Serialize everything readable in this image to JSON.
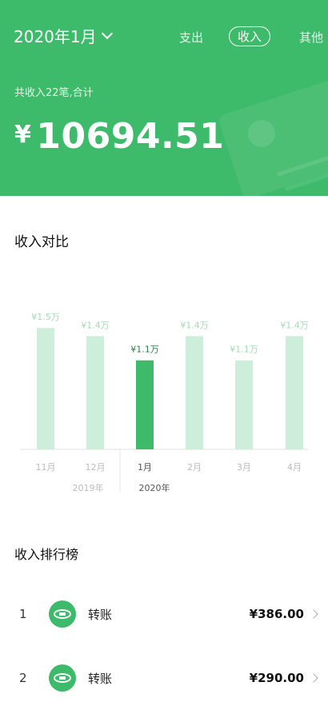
{
  "header": {
    "month": "2020年1月",
    "tabs": {
      "expense": "支出",
      "income": "收入",
      "other": "其他"
    },
    "summary_label": "共收入22笔,合计",
    "currency": "¥",
    "total": "10694.51",
    "colors": {
      "bg": "#3dba6a"
    }
  },
  "comparison": {
    "title": "收入对比",
    "chart_data": {
      "type": "bar",
      "categories": [
        "11月",
        "12月",
        "1月",
        "2月",
        "3月",
        "4月"
      ],
      "values": [
        1.5,
        1.4,
        1.1,
        1.4,
        1.1,
        1.4
      ],
      "labels": [
        "¥1.5万",
        "¥1.4万",
        "¥1.1万",
        "¥1.4万",
        "¥1.1万",
        "¥1.4万"
      ],
      "ylim": [
        0,
        1.7
      ],
      "highlight_index": 2,
      "year_labels": [
        "2019年",
        "2020年"
      ],
      "colors": {
        "bar": "#cdeeda",
        "highlight": "#3dba6a",
        "label": "#a5d9b6",
        "label_highlight": "#2e7d4a"
      }
    }
  },
  "ranking": {
    "title": "收入排行榜",
    "items": [
      {
        "rank": "1",
        "name": "转账",
        "amount": "¥386.00",
        "icon": "wechat-transfer-icon"
      },
      {
        "rank": "2",
        "name": "转账",
        "amount": "¥290.00",
        "icon": "wechat-transfer-icon"
      }
    ]
  }
}
